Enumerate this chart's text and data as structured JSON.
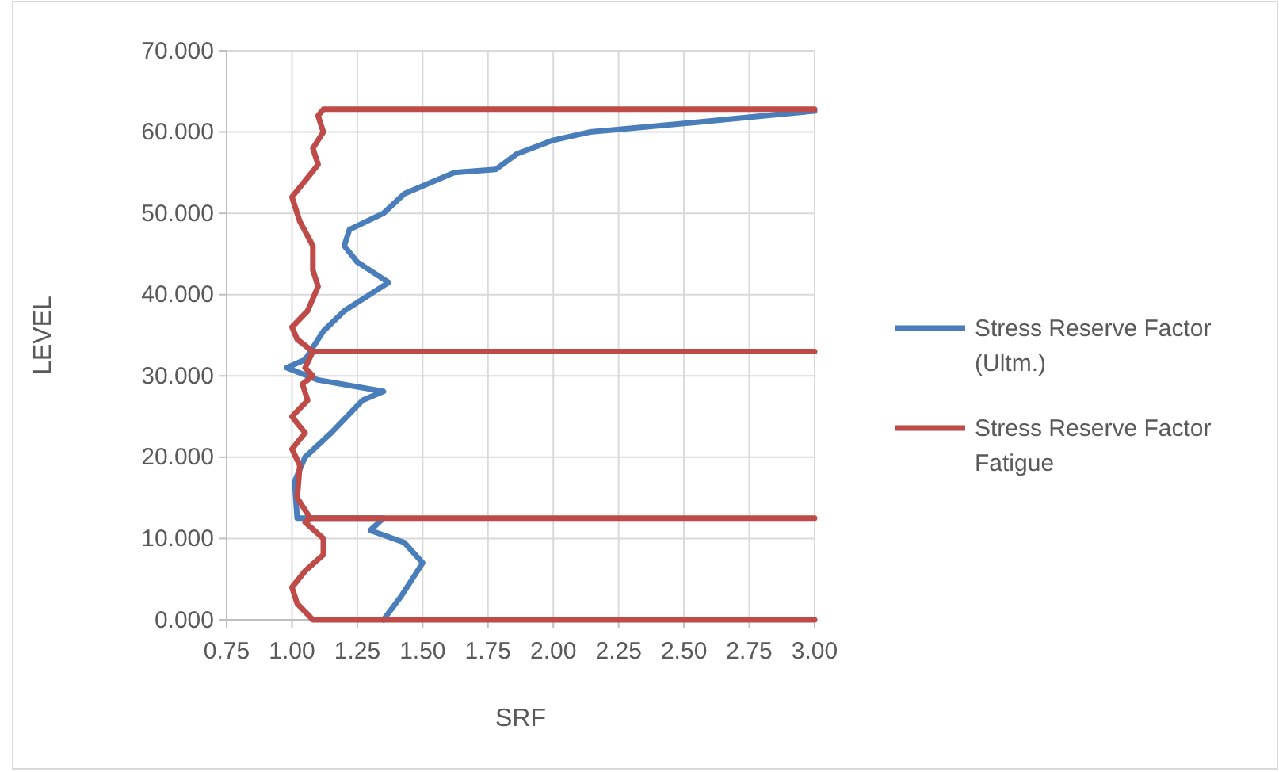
{
  "chart_data": {
    "type": "line",
    "xlabel": "SRF",
    "ylabel": "LEVEL",
    "xlim": [
      0.75,
      3.0
    ],
    "xticks": [
      {
        "value": 0.75,
        "label": "0.75"
      },
      {
        "value": 1.0,
        "label": "1.00"
      },
      {
        "value": 1.25,
        "label": "1.25"
      },
      {
        "value": 1.5,
        "label": "1.50"
      },
      {
        "value": 1.75,
        "label": "1.75"
      },
      {
        "value": 2.0,
        "label": "2.00"
      },
      {
        "value": 2.25,
        "label": "2.25"
      },
      {
        "value": 2.5,
        "label": "2.50"
      },
      {
        "value": 2.75,
        "label": "2.75"
      },
      {
        "value": 3.0,
        "label": "3.00"
      }
    ],
    "ylim": [
      0,
      70
    ],
    "yticks": [
      {
        "value": 0,
        "label": "0.000"
      },
      {
        "value": 10,
        "label": "10.000"
      },
      {
        "value": 20,
        "label": "20.000"
      },
      {
        "value": 30,
        "label": "30.000"
      },
      {
        "value": 40,
        "label": "40.000"
      },
      {
        "value": 50,
        "label": "50.000"
      },
      {
        "value": 60,
        "label": "60.000"
      },
      {
        "value": 70,
        "label": "70.000"
      }
    ],
    "grid": true,
    "legend": "right",
    "marker": "none",
    "line_style": "solid",
    "series": [
      {
        "name": "Stress Reserve Factor (Ultm.)",
        "color": "#4a7ebb",
        "x": [
          1.35,
          1.42,
          1.5,
          1.43,
          1.3,
          1.35,
          1.02,
          1.01,
          1.05,
          1.15,
          1.27,
          1.35,
          1.1,
          0.98,
          1.05,
          1.08,
          1.12,
          1.2,
          1.37,
          1.25,
          1.2,
          1.22,
          1.35,
          1.43,
          1.51,
          1.62,
          1.78,
          1.86,
          2.0,
          2.14,
          2.55,
          3.0
        ],
        "values": [
          0,
          3,
          7,
          9.5,
          11,
          12.5,
          12.5,
          17,
          20,
          23,
          27,
          28.1,
          29.5,
          31,
          32,
          33.5,
          35.5,
          38,
          41.5,
          44,
          46,
          48,
          50,
          52.4,
          53.5,
          55,
          55.4,
          57.3,
          59,
          60,
          61.2,
          62.6
        ]
      },
      {
        "name": "Stress Reserve Factor Fatigue",
        "color": "#be4b48",
        "x": [
          3.0,
          1.08,
          1.02,
          1.0,
          1.05,
          1.12,
          1.12,
          1.05,
          1.07,
          3.0,
          1.07,
          1.02,
          1.03,
          1.0,
          1.05,
          1.0,
          1.06,
          1.04,
          1.08,
          1.05,
          1.08,
          3.0,
          1.08,
          1.02,
          1.0,
          1.06,
          1.1,
          1.08,
          1.08,
          1.03,
          1.0,
          1.05,
          1.1,
          1.08,
          1.12,
          1.1,
          1.12,
          3.0
        ],
        "values": [
          0,
          0,
          2,
          4,
          6,
          8,
          10,
          12,
          12.5,
          12.5,
          12.5,
          15,
          19,
          21,
          23,
          25,
          27,
          29,
          30,
          31,
          33,
          33,
          33,
          34.5,
          36,
          38,
          41,
          43,
          46,
          49,
          52,
          54,
          56,
          58,
          60,
          62,
          62.8,
          62.8
        ]
      }
    ]
  }
}
